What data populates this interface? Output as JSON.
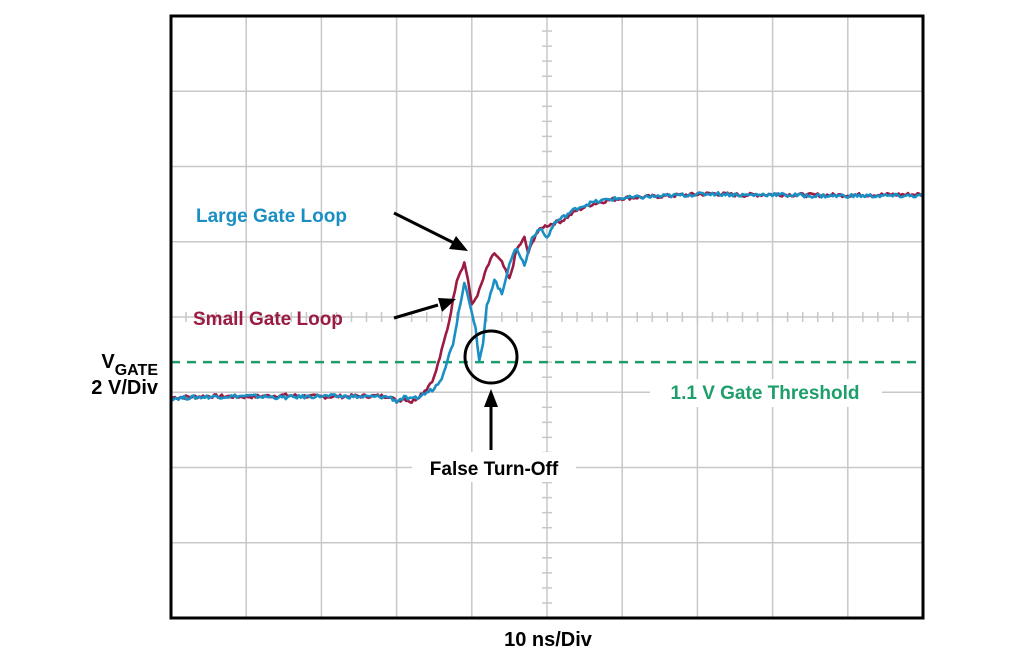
{
  "chart_data": {
    "type": "line",
    "title": "",
    "xlabel": "10 ns/Div",
    "ylabel_main": "V",
    "ylabel_sub": "GATE",
    "ylabel_scale": "2 V/Div",
    "x_divisions": 10,
    "y_divisions": 8,
    "xlim": [
      0,
      10
    ],
    "ylim": [
      0,
      8
    ],
    "threshold": {
      "label": "1.1 V Gate Threshold",
      "y": 3.4,
      "color": "#1e9e6a"
    },
    "annotations": {
      "large_loop": "Large Gate Loop",
      "small_loop": "Small Gate Loop",
      "false_turn_off": "False Turn-Off"
    },
    "series": [
      {
        "name": "Small Gate Loop",
        "color": "#9b1b42",
        "points": [
          [
            0,
            2.93
          ],
          [
            0.5,
            2.95
          ],
          [
            1.0,
            2.94
          ],
          [
            1.5,
            2.96
          ],
          [
            2.0,
            2.94
          ],
          [
            2.5,
            2.95
          ],
          [
            2.9,
            2.95
          ],
          [
            3.0,
            2.88
          ],
          [
            3.1,
            2.92
          ],
          [
            3.2,
            2.87
          ],
          [
            3.3,
            2.95
          ],
          [
            3.4,
            3.05
          ],
          [
            3.5,
            3.2
          ],
          [
            3.6,
            3.55
          ],
          [
            3.7,
            3.95
          ],
          [
            3.8,
            4.5
          ],
          [
            3.9,
            4.72
          ],
          [
            3.95,
            4.5
          ],
          [
            4.0,
            4.15
          ],
          [
            4.1,
            4.35
          ],
          [
            4.2,
            4.65
          ],
          [
            4.3,
            4.85
          ],
          [
            4.4,
            4.72
          ],
          [
            4.5,
            4.5
          ],
          [
            4.6,
            4.9
          ],
          [
            4.7,
            5.05
          ],
          [
            4.75,
            4.85
          ],
          [
            4.85,
            5.1
          ],
          [
            4.95,
            5.2
          ],
          [
            5.1,
            5.25
          ],
          [
            5.2,
            5.28
          ],
          [
            5.4,
            5.42
          ],
          [
            5.6,
            5.5
          ],
          [
            5.8,
            5.55
          ],
          [
            6.0,
            5.58
          ],
          [
            6.4,
            5.6
          ],
          [
            6.8,
            5.62
          ],
          [
            7.2,
            5.64
          ],
          [
            7.6,
            5.62
          ],
          [
            8.0,
            5.63
          ],
          [
            8.5,
            5.62
          ],
          [
            9.0,
            5.62
          ],
          [
            10,
            5.63
          ]
        ]
      },
      {
        "name": "Large Gate Loop",
        "color": "#1a8fc4",
        "points": [
          [
            0,
            2.92
          ],
          [
            0.5,
            2.94
          ],
          [
            1.0,
            2.95
          ],
          [
            1.5,
            2.93
          ],
          [
            2.0,
            2.95
          ],
          [
            2.5,
            2.94
          ],
          [
            2.9,
            2.94
          ],
          [
            3.0,
            2.88
          ],
          [
            3.1,
            2.93
          ],
          [
            3.2,
            2.9
          ],
          [
            3.3,
            2.94
          ],
          [
            3.5,
            3.05
          ],
          [
            3.6,
            3.2
          ],
          [
            3.75,
            3.65
          ],
          [
            3.85,
            4.2
          ],
          [
            3.9,
            4.45
          ],
          [
            3.95,
            4.3
          ],
          [
            4.05,
            3.85
          ],
          [
            4.1,
            3.4
          ],
          [
            4.15,
            3.65
          ],
          [
            4.2,
            4.15
          ],
          [
            4.3,
            4.5
          ],
          [
            4.4,
            4.3
          ],
          [
            4.5,
            4.72
          ],
          [
            4.6,
            4.92
          ],
          [
            4.7,
            4.68
          ],
          [
            4.8,
            5.05
          ],
          [
            4.9,
            5.18
          ],
          [
            5.0,
            5.05
          ],
          [
            5.1,
            5.25
          ],
          [
            5.25,
            5.35
          ],
          [
            5.4,
            5.45
          ],
          [
            5.6,
            5.52
          ],
          [
            5.8,
            5.56
          ],
          [
            6.0,
            5.58
          ],
          [
            6.4,
            5.6
          ],
          [
            6.8,
            5.62
          ],
          [
            7.2,
            5.64
          ],
          [
            7.6,
            5.62
          ],
          [
            8.0,
            5.63
          ],
          [
            8.5,
            5.61
          ],
          [
            9.0,
            5.61
          ],
          [
            10,
            5.61
          ]
        ]
      }
    ]
  }
}
